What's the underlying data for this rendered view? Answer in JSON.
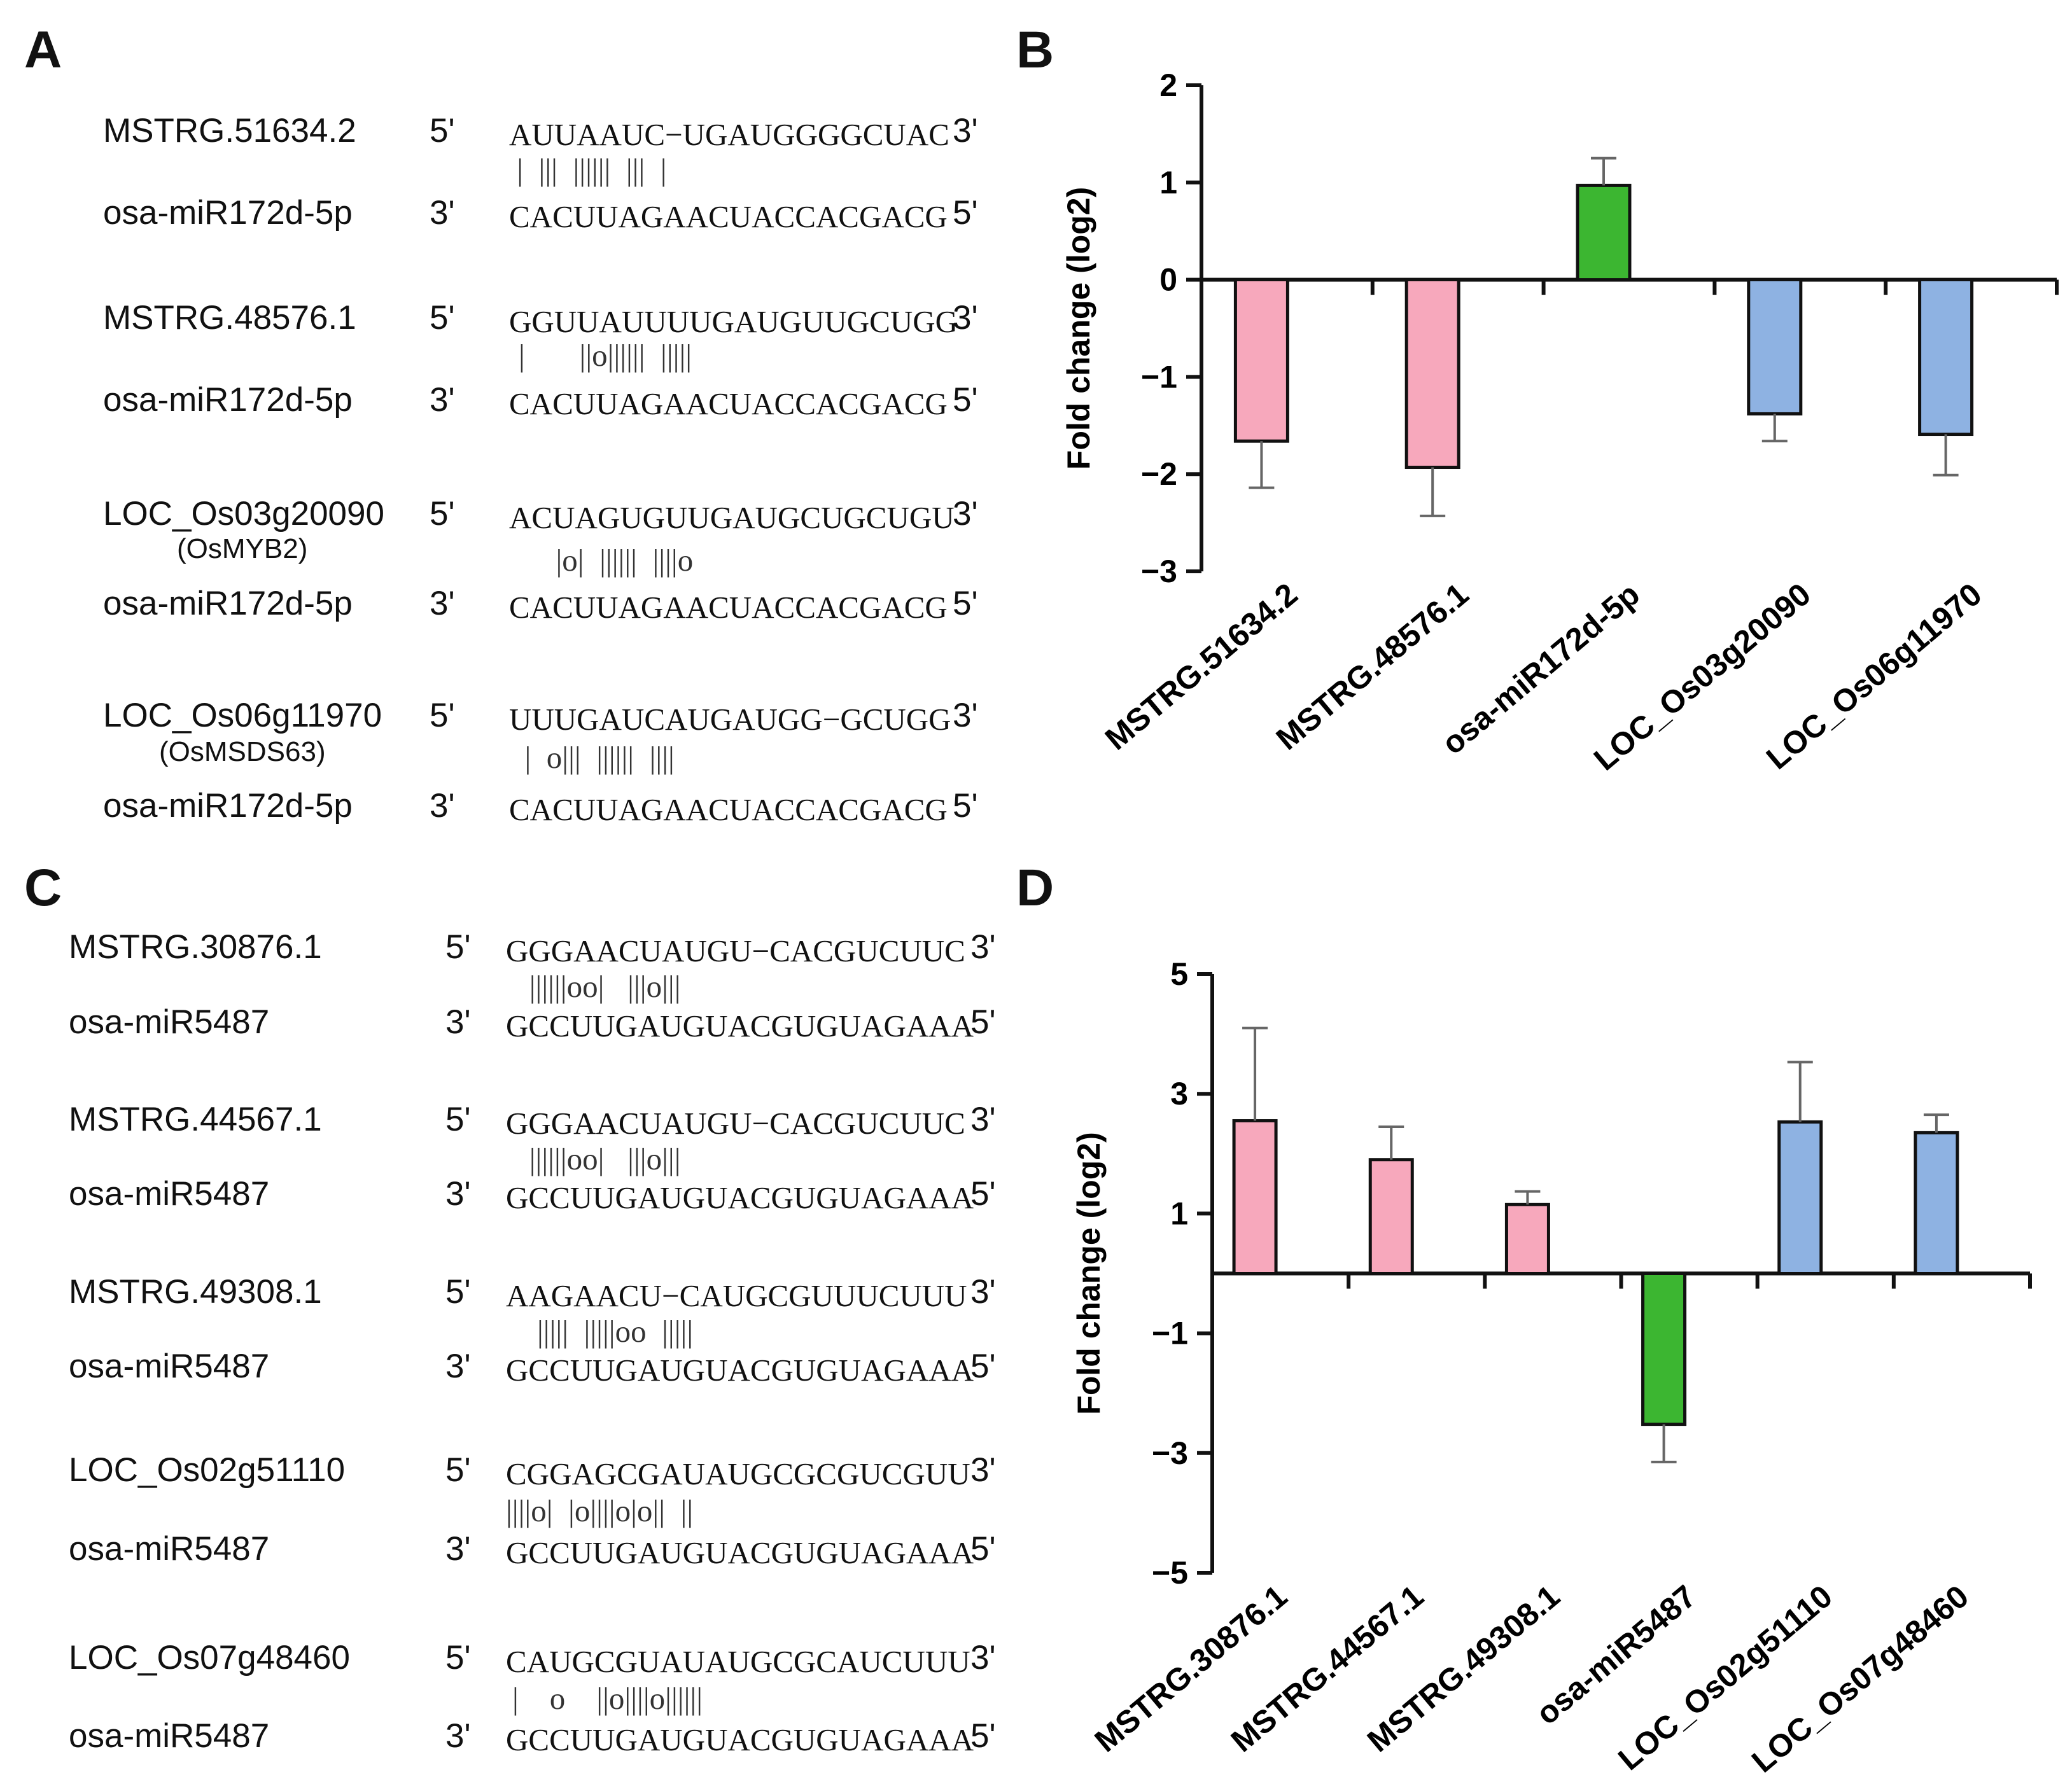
{
  "panels": {
    "A": {
      "letter": "A",
      "pairs": [
        {
          "target": "MSTRG.51634.2",
          "sub": "",
          "target_5": "5'",
          "target_seq": "AUUAAUC−UGAUGGGGCUAC",
          "target_3": "3'",
          "match": " |  |||  ||||||  |||  |",
          "mirna": "osa-miR172d-5p",
          "mirna_3": "3'",
          "mirna_seq": "CACUUAGAACUACCACGACG",
          "mirna_5": "5'"
        },
        {
          "target": "MSTRG.48576.1",
          "sub": "",
          "target_5": "5'",
          "target_seq": "GGUUAUUUUGAUGUUGCUGG",
          "target_3": "3'",
          "match": "|       ||o||||||  |||||",
          "mirna": "osa-miR172d-5p",
          "mirna_3": "3'",
          "mirna_seq": "CACUUAGAACUACCACGACG",
          "mirna_5": "5'"
        },
        {
          "target": "LOC_Os03g20090",
          "sub": "(OsMYB2)",
          "target_5": "5'",
          "target_seq": "ACUAGUGUUGAUGCUGCUGU",
          "target_3": "3'",
          "match": "      |o|  ||||||  ||||o",
          "mirna": "osa-miR172d-5p",
          "mirna_3": "3'",
          "mirna_seq": "CACUUAGAACUACCACGACG",
          "mirna_5": "5'"
        },
        {
          "target": "LOC_Os06g11970",
          "sub": "(OsMSDS63)",
          "target_5": "5'",
          "target_seq": "UUUGAUCAUGAUGG−GCUGG",
          "target_3": "3'",
          "match": "  |  o|||  ||||||  ||||",
          "mirna": "osa-miR172d-5p",
          "mirna_3": "3'",
          "mirna_seq": "CACUUAGAACUACCACGACG",
          "mirna_5": "5'"
        }
      ]
    },
    "C": {
      "letter": "C",
      "pairs": [
        {
          "target": "MSTRG.30876.1",
          "target_5": "5'",
          "target_seq": "GGGAACUAUGU−CACGUCUUC",
          "target_3": "3'",
          "match": "   ||||||oo|   |||o|||",
          "mirna": "osa-miR5487",
          "mirna_3": "3'",
          "mirna_seq": "GCCUUGAUGUACGUGUAGAAA",
          "mirna_5": "5'"
        },
        {
          "target": "MSTRG.44567.1",
          "target_5": "5'",
          "target_seq": "GGGAACUAUGU−CACGUCUUC",
          "target_3": "3'",
          "match": "   ||||||oo|   |||o|||",
          "mirna": "osa-miR5487",
          "mirna_3": "3'",
          "mirna_seq": "GCCUUGAUGUACGUGUAGAAA",
          "mirna_5": "5'"
        },
        {
          "target": "MSTRG.49308.1",
          "target_5": "5'",
          "target_seq": "AAGAACU−CAUGCGUUUCUUU",
          "target_3": "3'",
          "match": "    |||||  |||||oo  |||||",
          "mirna": "osa-miR5487",
          "mirna_3": "3'",
          "mirna_seq": "GCCUUGAUGUACGUGUAGAAA",
          "mirna_5": "5'"
        },
        {
          "target": "LOC_Os02g51110",
          "target_5": "5'",
          "target_seq": "CGGAGCGAUAUGCGCGUCGUU",
          "target_3": "3'",
          "match": "||||o|  |o||||o|o||  ||",
          "mirna": "osa-miR5487",
          "mirna_3": "3'",
          "mirna_seq": "GCCUUGAUGUACGUGUAGAAA",
          "mirna_5": "5'"
        },
        {
          "target": "LOC_Os07g48460",
          "target_5": "5'",
          "target_seq": "CAUGCGUAUAUGCGCAUCUUU",
          "target_3": "3'",
          "match": "|    o    ||o||||o||||||",
          "mirna": "osa-miR5487",
          "mirna_3": "3'",
          "mirna_seq": "GCCUUGAUGUACGUGUAGAAA",
          "mirna_5": "5'"
        }
      ]
    },
    "B": {
      "letter": "B"
    },
    "D": {
      "letter": "D"
    }
  },
  "chart_data": [
    {
      "type": "bar",
      "panel": "B",
      "title": "",
      "xlabel": "",
      "ylabel": "Fold change (log2)",
      "ylim": [
        -3,
        2
      ],
      "yticks": [
        -3,
        -2,
        -1,
        0,
        1,
        2
      ],
      "ytick_labels": [
        "−3",
        "−2",
        "−1",
        "0",
        "1",
        "2"
      ],
      "categories": [
        "MSTRG.51634.2",
        "MSTRG.48576.1",
        "osa-miR172d-5p",
        "LOC_Os03g20090",
        "LOC_Os06g11970"
      ],
      "values": [
        -1.66,
        -1.93,
        0.97,
        -1.38,
        -1.59
      ],
      "errors": [
        0.48,
        0.5,
        0.28,
        0.28,
        0.42
      ],
      "colors": [
        "#F7A8BC",
        "#F7A8BC",
        "#3CB631",
        "#8EB2E2",
        "#8EB2E2"
      ]
    },
    {
      "type": "bar",
      "panel": "D",
      "title": "",
      "xlabel": "",
      "ylabel": "Fold change (log2)",
      "ylim": [
        -5,
        5
      ],
      "yticks": [
        -5,
        -3,
        -1,
        1,
        3,
        5
      ],
      "ytick_labels": [
        "−5",
        "−3",
        "−1",
        "1",
        "3",
        "5"
      ],
      "categories": [
        "MSTRG.30876.1",
        "MSTRG.44567.1",
        "MSTRG.49308.1",
        "osa-miR5487",
        "LOC_Os02g51110",
        "LOC_Os07g48460"
      ],
      "values": [
        2.55,
        1.9,
        1.15,
        -2.52,
        2.53,
        2.35
      ],
      "errors": [
        1.55,
        0.55,
        0.22,
        0.63,
        1.0,
        0.3
      ],
      "colors": [
        "#F7A8BC",
        "#F7A8BC",
        "#F7A8BC",
        "#3CB631",
        "#8EB2E2",
        "#8EB2E2"
      ]
    }
  ]
}
